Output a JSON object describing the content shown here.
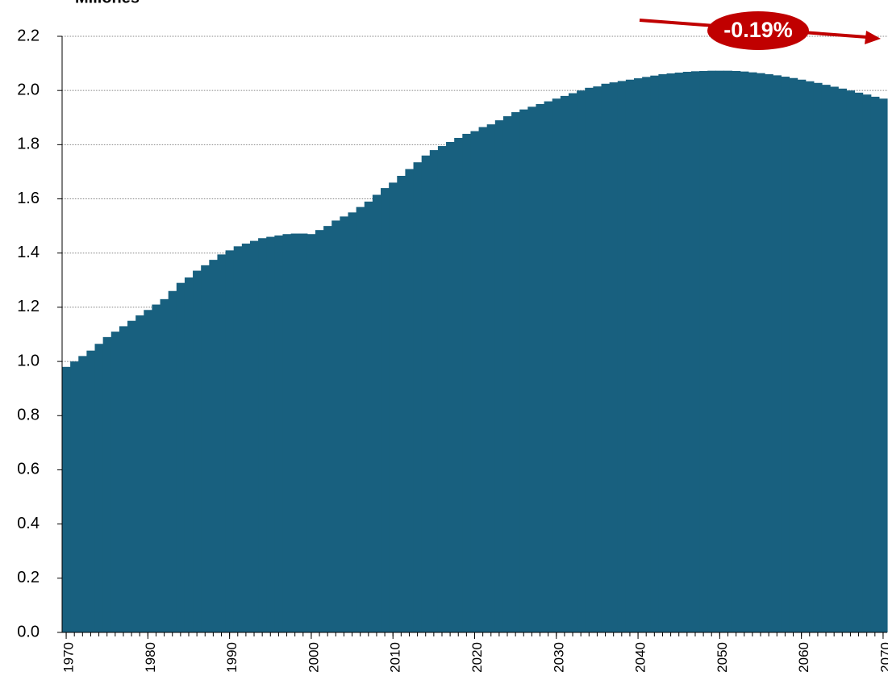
{
  "chart_data": {
    "type": "bar",
    "title": "Millones",
    "annotation": "-0.19%",
    "x": [
      1970,
      1971,
      1972,
      1973,
      1974,
      1975,
      1976,
      1977,
      1978,
      1979,
      1980,
      1981,
      1982,
      1983,
      1984,
      1985,
      1986,
      1987,
      1988,
      1989,
      1990,
      1991,
      1992,
      1993,
      1994,
      1995,
      1996,
      1997,
      1998,
      1999,
      2000,
      2001,
      2002,
      2003,
      2004,
      2005,
      2006,
      2007,
      2008,
      2009,
      2010,
      2011,
      2012,
      2013,
      2014,
      2015,
      2016,
      2017,
      2018,
      2019,
      2020,
      2021,
      2022,
      2023,
      2024,
      2025,
      2026,
      2027,
      2028,
      2029,
      2030,
      2031,
      2032,
      2033,
      2034,
      2035,
      2036,
      2037,
      2038,
      2039,
      2040,
      2041,
      2042,
      2043,
      2044,
      2045,
      2046,
      2047,
      2048,
      2049,
      2050,
      2051,
      2052,
      2053,
      2054,
      2055,
      2056,
      2057,
      2058,
      2059,
      2060,
      2061,
      2062,
      2063,
      2064,
      2065,
      2066,
      2067,
      2068,
      2069,
      2070
    ],
    "values": [
      0.98,
      1.0,
      1.02,
      1.04,
      1.065,
      1.09,
      1.11,
      1.13,
      1.15,
      1.17,
      1.19,
      1.21,
      1.23,
      1.26,
      1.29,
      1.31,
      1.335,
      1.355,
      1.375,
      1.395,
      1.41,
      1.425,
      1.435,
      1.445,
      1.455,
      1.46,
      1.465,
      1.47,
      1.472,
      1.472,
      1.47,
      1.485,
      1.5,
      1.52,
      1.535,
      1.55,
      1.57,
      1.59,
      1.615,
      1.64,
      1.66,
      1.685,
      1.71,
      1.735,
      1.76,
      1.78,
      1.795,
      1.81,
      1.825,
      1.84,
      1.85,
      1.865,
      1.875,
      1.89,
      1.905,
      1.92,
      1.93,
      1.94,
      1.95,
      1.96,
      1.97,
      1.98,
      1.99,
      2.0,
      2.01,
      2.015,
      2.025,
      2.03,
      2.035,
      2.04,
      2.045,
      2.05,
      2.055,
      2.06,
      2.063,
      2.066,
      2.069,
      2.071,
      2.072,
      2.073,
      2.073,
      2.073,
      2.072,
      2.07,
      2.067,
      2.064,
      2.06,
      2.056,
      2.051,
      2.046,
      2.04,
      2.034,
      2.028,
      2.021,
      2.014,
      2.007,
      2.0,
      1.992,
      1.985,
      1.977,
      1.97
    ],
    "color": "#18607f",
    "xlim": [
      1969.5,
      2070.5
    ],
    "xticks": [
      1970,
      1980,
      1990,
      2000,
      2010,
      2020,
      2030,
      2040,
      2050,
      2060,
      2070
    ],
    "ylim": [
      0,
      2.2
    ],
    "yticks": [
      {
        "value": 0,
        "label": "0.0"
      },
      0.2,
      0.4,
      0.6,
      0.8,
      {
        "value": 1,
        "label": "1.0"
      },
      1.2,
      1.4,
      1.6,
      1.8,
      {
        "value": 2,
        "label": "2.0"
      },
      2.2
    ],
    "grid": true
  }
}
